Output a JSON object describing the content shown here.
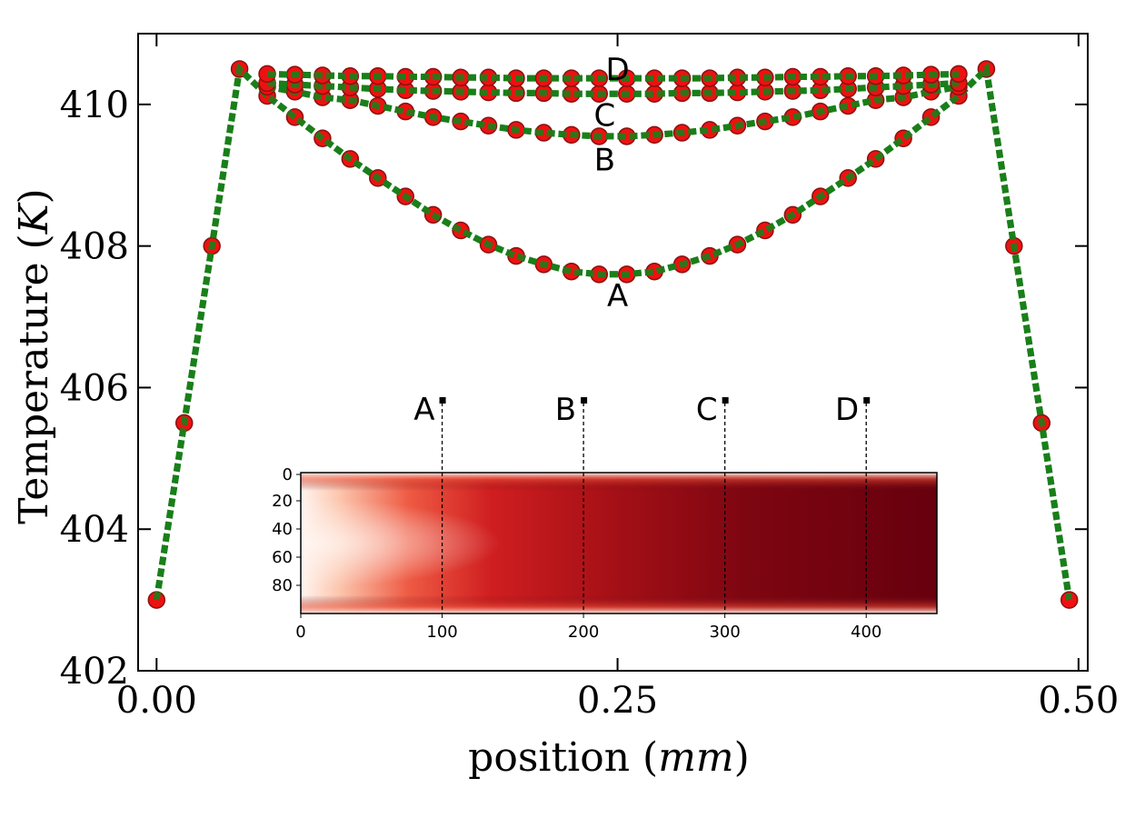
{
  "chart_data": {
    "type": "line",
    "xlabel_text": "position",
    "xlabel_unit": "mm",
    "ylabel_text": "Temperature",
    "ylabel_unit": "K",
    "xlim": [
      -0.01,
      0.505
    ],
    "ylim": [
      402,
      411
    ],
    "xticks": [
      0.0,
      0.25,
      0.5
    ],
    "xtick_labels": [
      "0.00",
      "0.25",
      "0.50"
    ],
    "yticks": [
      402,
      404,
      406,
      408,
      410
    ],
    "ytick_labels": [
      "402",
      "404",
      "406",
      "408",
      "410"
    ],
    "colors": {
      "line": "#1a7f1a",
      "marker": "#ee1111",
      "marker_edge": "#8a1010"
    },
    "series": [
      {
        "name": "A",
        "x": [
          0.0,
          0.015,
          0.03,
          0.045,
          0.06,
          0.075,
          0.09,
          0.105,
          0.12,
          0.135,
          0.15,
          0.165,
          0.18,
          0.195,
          0.21,
          0.225,
          0.24,
          0.255,
          0.27,
          0.285,
          0.3,
          0.315,
          0.33,
          0.345,
          0.36,
          0.375,
          0.39,
          0.405,
          0.42,
          0.435,
          0.45,
          0.465,
          0.48,
          0.495
        ],
        "y": [
          403.0,
          405.5,
          408.0,
          410.5,
          410.12,
          409.82,
          409.52,
          409.23,
          408.96,
          408.7,
          408.44,
          408.22,
          408.02,
          407.86,
          407.74,
          407.64,
          407.6,
          407.6,
          407.64,
          407.74,
          407.86,
          408.02,
          408.22,
          408.44,
          408.7,
          408.96,
          409.23,
          409.52,
          409.82,
          410.12,
          410.5,
          408.0,
          405.5,
          403.0
        ]
      },
      {
        "name": "B",
        "x": [
          0.06,
          0.075,
          0.09,
          0.105,
          0.12,
          0.135,
          0.15,
          0.165,
          0.18,
          0.195,
          0.21,
          0.225,
          0.24,
          0.255,
          0.27,
          0.285,
          0.3,
          0.315,
          0.33,
          0.345,
          0.36,
          0.375,
          0.39,
          0.405,
          0.42,
          0.435
        ],
        "y": [
          410.25,
          410.18,
          410.1,
          410.06,
          409.98,
          409.9,
          409.82,
          409.76,
          409.7,
          409.64,
          409.6,
          409.57,
          409.55,
          409.55,
          409.57,
          409.6,
          409.64,
          409.7,
          409.76,
          409.82,
          409.9,
          409.98,
          410.06,
          410.1,
          410.18,
          410.25
        ]
      },
      {
        "name": "C",
        "x": [
          0.06,
          0.075,
          0.09,
          0.105,
          0.12,
          0.135,
          0.15,
          0.165,
          0.18,
          0.195,
          0.21,
          0.225,
          0.24,
          0.255,
          0.27,
          0.285,
          0.3,
          0.315,
          0.33,
          0.345,
          0.36,
          0.375,
          0.39,
          0.405,
          0.42,
          0.435
        ],
        "y": [
          410.3,
          410.28,
          410.26,
          410.24,
          410.22,
          410.2,
          410.19,
          410.18,
          410.17,
          410.16,
          410.16,
          410.15,
          410.15,
          410.15,
          410.15,
          410.16,
          410.16,
          410.17,
          410.18,
          410.19,
          410.2,
          410.22,
          410.24,
          410.26,
          410.28,
          410.3
        ]
      },
      {
        "name": "D",
        "x": [
          0.06,
          0.075,
          0.09,
          0.105,
          0.12,
          0.135,
          0.15,
          0.165,
          0.18,
          0.195,
          0.21,
          0.225,
          0.24,
          0.255,
          0.27,
          0.285,
          0.3,
          0.315,
          0.33,
          0.345,
          0.36,
          0.375,
          0.39,
          0.405,
          0.42,
          0.435
        ],
        "y": [
          410.43,
          410.42,
          410.41,
          410.4,
          410.4,
          410.39,
          410.39,
          410.38,
          410.38,
          410.37,
          410.37,
          410.37,
          410.37,
          410.37,
          410.37,
          410.37,
          410.37,
          410.38,
          410.38,
          410.39,
          410.39,
          410.4,
          410.4,
          410.41,
          410.42,
          410.43
        ]
      }
    ],
    "curve_labels": [
      {
        "text": "A",
        "x": 0.25,
        "y": 407.3
      },
      {
        "text": "B",
        "x": 0.243,
        "y": 409.22
      },
      {
        "text": "C",
        "x": 0.243,
        "y": 409.85
      },
      {
        "text": "D",
        "x": 0.25,
        "y": 410.5
      }
    ],
    "inset": {
      "type": "heatmap",
      "xlim": [
        0,
        450
      ],
      "ylim": [
        0,
        100
      ],
      "xticks": [
        0,
        100,
        200,
        300,
        400
      ],
      "xtick_labels": [
        "0",
        "100",
        "200",
        "300",
        "400"
      ],
      "yticks": [
        0,
        20,
        40,
        60,
        80
      ],
      "ytick_labels": [
        "0",
        "20",
        "40",
        "60",
        "80"
      ],
      "colormap": [
        "#fff5f0",
        "#f5a487",
        "#d52221",
        "#a00f15",
        "#67000d"
      ],
      "probes": [
        {
          "label": "A",
          "x": 100
        },
        {
          "label": "B",
          "x": 200
        },
        {
          "label": "C",
          "x": 300
        },
        {
          "label": "D",
          "x": 400
        }
      ]
    }
  }
}
